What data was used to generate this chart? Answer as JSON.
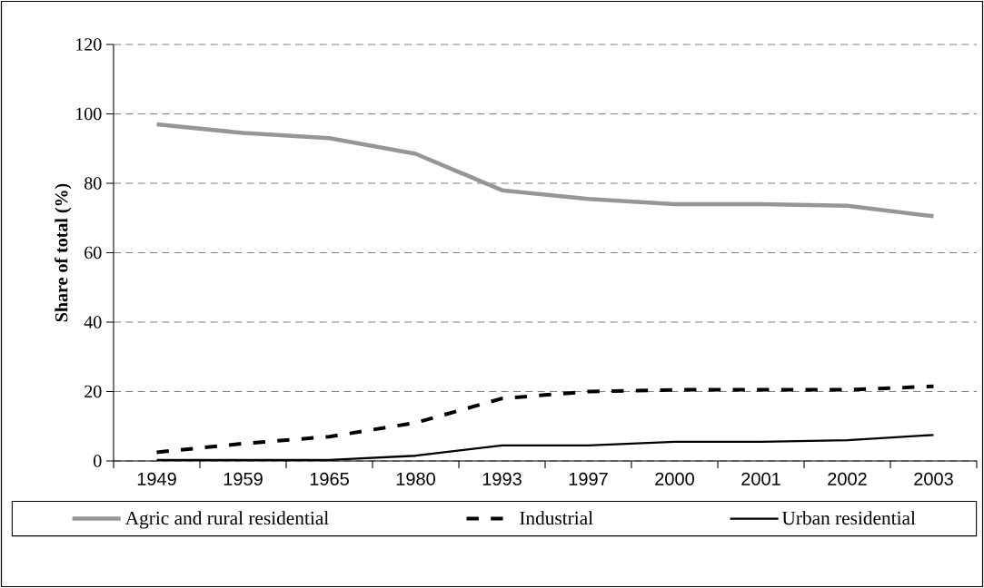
{
  "chart_data": {
    "type": "line",
    "ylabel": "Share of total (%)",
    "categories": [
      "1949",
      "1959",
      "1965",
      "1980",
      "1993",
      "1997",
      "2000",
      "2001",
      "2002",
      "2003"
    ],
    "series": [
      {
        "name": "Agric and rural residential",
        "color": "#969696",
        "line_style": "solid",
        "values": [
          97,
          94.5,
          93,
          88.5,
          78,
          75.5,
          74,
          74,
          73.5,
          70.5
        ]
      },
      {
        "name": "Industrial",
        "color": "#000000",
        "line_style": "dashed",
        "values": [
          2.5,
          5,
          7,
          11,
          18,
          20,
          20.5,
          20.5,
          20.5,
          21.5
        ]
      },
      {
        "name": "Urban residential",
        "color": "#000000",
        "line_style": "solid",
        "values": [
          0.3,
          0.3,
          0.3,
          1.5,
          4.5,
          4.5,
          5.5,
          5.5,
          6,
          7.5
        ]
      }
    ],
    "ylim": [
      0,
      120
    ],
    "yticks": [
      0,
      20,
      40,
      60,
      80,
      100,
      120
    ],
    "grid": "y",
    "legend": "bottom"
  }
}
